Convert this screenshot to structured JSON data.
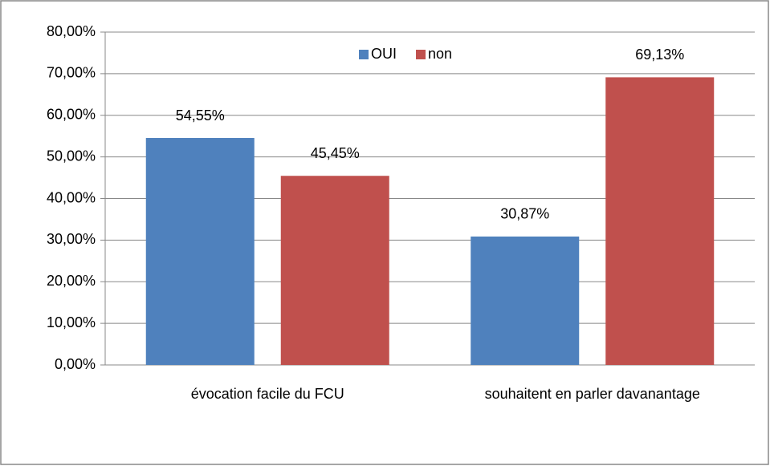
{
  "chart_data": {
    "type": "bar",
    "categories": [
      "évocation facile du FCU",
      "souhaitent en parler davanantage"
    ],
    "series": [
      {
        "name": "OUI",
        "color": "#4f81bd",
        "values": [
          54.55,
          30.87
        ],
        "value_labels": [
          "54,55%",
          "30,87%"
        ]
      },
      {
        "name": "non",
        "color": "#c0504d",
        "values": [
          45.45,
          69.13
        ],
        "value_labels": [
          "45,45%",
          "69,13%"
        ]
      }
    ],
    "ylim": [
      0,
      80
    ],
    "yticks": [
      {
        "value": 0,
        "label": "0,00%"
      },
      {
        "value": 10,
        "label": "10,00%"
      },
      {
        "value": 20,
        "label": "20,00%"
      },
      {
        "value": 30,
        "label": "30,00%"
      },
      {
        "value": 40,
        "label": "40,00%"
      },
      {
        "value": 50,
        "label": "50,00%"
      },
      {
        "value": 60,
        "label": "60,00%"
      },
      {
        "value": 70,
        "label": "70,00%"
      },
      {
        "value": 80,
        "label": "80,00%"
      }
    ],
    "grid": true,
    "legend": "upper center"
  }
}
